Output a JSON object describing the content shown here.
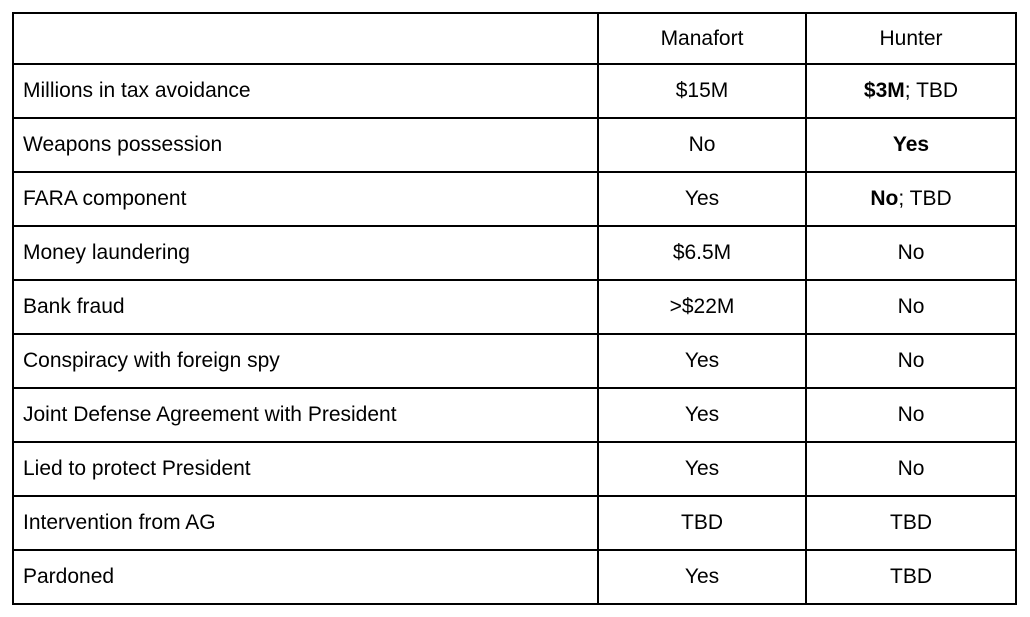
{
  "colors": {
    "border": "#000000",
    "text": "#000000",
    "background": "#ffffff"
  },
  "table": {
    "columns": [
      {
        "label": ""
      },
      {
        "label": "Manafort"
      },
      {
        "label": "Hunter"
      }
    ],
    "rows": [
      {
        "label": "Millions in tax avoidance",
        "cells": {
          "manafort": [
            {
              "text": "$15M",
              "bold": false
            }
          ],
          "hunter": [
            {
              "text": "$3M",
              "bold": true
            },
            {
              "text": "; TBD",
              "bold": false
            }
          ]
        }
      },
      {
        "label": "Weapons possession",
        "cells": {
          "manafort": [
            {
              "text": "No",
              "bold": false
            }
          ],
          "hunter": [
            {
              "text": "Yes",
              "bold": true
            }
          ]
        }
      },
      {
        "label": "FARA component",
        "cells": {
          "manafort": [
            {
              "text": "Yes",
              "bold": false
            }
          ],
          "hunter": [
            {
              "text": "No",
              "bold": true
            },
            {
              "text": "; TBD",
              "bold": false
            }
          ]
        }
      },
      {
        "label": "Money laundering",
        "cells": {
          "manafort": [
            {
              "text": "$6.5M",
              "bold": false
            }
          ],
          "hunter": [
            {
              "text": "No",
              "bold": false
            }
          ]
        }
      },
      {
        "label": "Bank fraud",
        "cells": {
          "manafort": [
            {
              "text": ">$22M",
              "bold": false
            }
          ],
          "hunter": [
            {
              "text": "No",
              "bold": false
            }
          ]
        }
      },
      {
        "label": "Conspiracy with foreign spy",
        "cells": {
          "manafort": [
            {
              "text": "Yes",
              "bold": false
            }
          ],
          "hunter": [
            {
              "text": "No",
              "bold": false
            }
          ]
        }
      },
      {
        "label": "Joint Defense Agreement with President",
        "cells": {
          "manafort": [
            {
              "text": "Yes",
              "bold": false
            }
          ],
          "hunter": [
            {
              "text": "No",
              "bold": false
            }
          ]
        }
      },
      {
        "label": "Lied to protect President",
        "cells": {
          "manafort": [
            {
              "text": "Yes",
              "bold": false
            }
          ],
          "hunter": [
            {
              "text": "No",
              "bold": false
            }
          ]
        }
      },
      {
        "label": "Intervention from AG",
        "cells": {
          "manafort": [
            {
              "text": "TBD",
              "bold": false
            }
          ],
          "hunter": [
            {
              "text": "TBD",
              "bold": false
            }
          ]
        }
      },
      {
        "label": "Pardoned",
        "cells": {
          "manafort": [
            {
              "text": "Yes",
              "bold": false
            }
          ],
          "hunter": [
            {
              "text": "TBD",
              "bold": false
            }
          ]
        }
      }
    ]
  }
}
